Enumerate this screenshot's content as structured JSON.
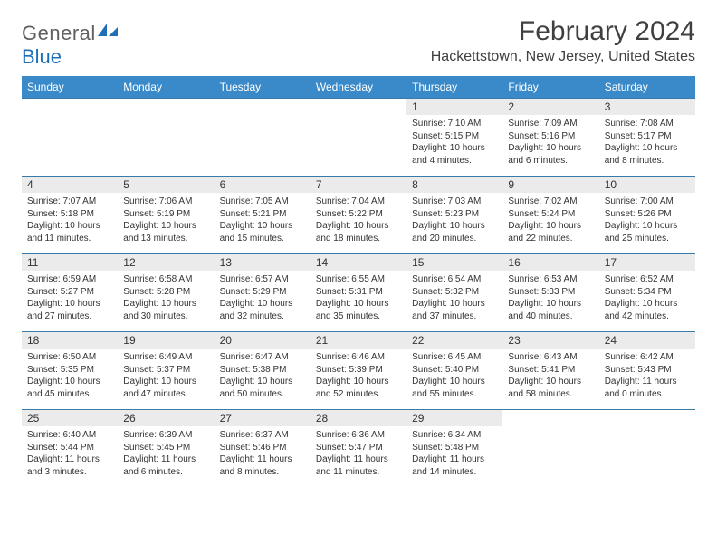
{
  "colors": {
    "header_bg": "#3a8ac9",
    "header_text": "#ffffff",
    "daynum_bg": "#ebebeb",
    "text": "#333333",
    "row_border": "#3a7aa8",
    "logo_gray": "#606060",
    "logo_blue": "#1e6fb8"
  },
  "logo": {
    "part1": "General",
    "part2": "Blue"
  },
  "title": "February 2024",
  "subtitle": "Hackettstown, New Jersey, United States",
  "weekdays": [
    "Sunday",
    "Monday",
    "Tuesday",
    "Wednesday",
    "Thursday",
    "Friday",
    "Saturday"
  ],
  "weeks": [
    [
      null,
      null,
      null,
      null,
      {
        "n": "1",
        "sunrise": "7:10 AM",
        "sunset": "5:15 PM",
        "daylight": "10 hours and 4 minutes."
      },
      {
        "n": "2",
        "sunrise": "7:09 AM",
        "sunset": "5:16 PM",
        "daylight": "10 hours and 6 minutes."
      },
      {
        "n": "3",
        "sunrise": "7:08 AM",
        "sunset": "5:17 PM",
        "daylight": "10 hours and 8 minutes."
      }
    ],
    [
      {
        "n": "4",
        "sunrise": "7:07 AM",
        "sunset": "5:18 PM",
        "daylight": "10 hours and 11 minutes."
      },
      {
        "n": "5",
        "sunrise": "7:06 AM",
        "sunset": "5:19 PM",
        "daylight": "10 hours and 13 minutes."
      },
      {
        "n": "6",
        "sunrise": "7:05 AM",
        "sunset": "5:21 PM",
        "daylight": "10 hours and 15 minutes."
      },
      {
        "n": "7",
        "sunrise": "7:04 AM",
        "sunset": "5:22 PM",
        "daylight": "10 hours and 18 minutes."
      },
      {
        "n": "8",
        "sunrise": "7:03 AM",
        "sunset": "5:23 PM",
        "daylight": "10 hours and 20 minutes."
      },
      {
        "n": "9",
        "sunrise": "7:02 AM",
        "sunset": "5:24 PM",
        "daylight": "10 hours and 22 minutes."
      },
      {
        "n": "10",
        "sunrise": "7:00 AM",
        "sunset": "5:26 PM",
        "daylight": "10 hours and 25 minutes."
      }
    ],
    [
      {
        "n": "11",
        "sunrise": "6:59 AM",
        "sunset": "5:27 PM",
        "daylight": "10 hours and 27 minutes."
      },
      {
        "n": "12",
        "sunrise": "6:58 AM",
        "sunset": "5:28 PM",
        "daylight": "10 hours and 30 minutes."
      },
      {
        "n": "13",
        "sunrise": "6:57 AM",
        "sunset": "5:29 PM",
        "daylight": "10 hours and 32 minutes."
      },
      {
        "n": "14",
        "sunrise": "6:55 AM",
        "sunset": "5:31 PM",
        "daylight": "10 hours and 35 minutes."
      },
      {
        "n": "15",
        "sunrise": "6:54 AM",
        "sunset": "5:32 PM",
        "daylight": "10 hours and 37 minutes."
      },
      {
        "n": "16",
        "sunrise": "6:53 AM",
        "sunset": "5:33 PM",
        "daylight": "10 hours and 40 minutes."
      },
      {
        "n": "17",
        "sunrise": "6:52 AM",
        "sunset": "5:34 PM",
        "daylight": "10 hours and 42 minutes."
      }
    ],
    [
      {
        "n": "18",
        "sunrise": "6:50 AM",
        "sunset": "5:35 PM",
        "daylight": "10 hours and 45 minutes."
      },
      {
        "n": "19",
        "sunrise": "6:49 AM",
        "sunset": "5:37 PM",
        "daylight": "10 hours and 47 minutes."
      },
      {
        "n": "20",
        "sunrise": "6:47 AM",
        "sunset": "5:38 PM",
        "daylight": "10 hours and 50 minutes."
      },
      {
        "n": "21",
        "sunrise": "6:46 AM",
        "sunset": "5:39 PM",
        "daylight": "10 hours and 52 minutes."
      },
      {
        "n": "22",
        "sunrise": "6:45 AM",
        "sunset": "5:40 PM",
        "daylight": "10 hours and 55 minutes."
      },
      {
        "n": "23",
        "sunrise": "6:43 AM",
        "sunset": "5:41 PM",
        "daylight": "10 hours and 58 minutes."
      },
      {
        "n": "24",
        "sunrise": "6:42 AM",
        "sunset": "5:43 PM",
        "daylight": "11 hours and 0 minutes."
      }
    ],
    [
      {
        "n": "25",
        "sunrise": "6:40 AM",
        "sunset": "5:44 PM",
        "daylight": "11 hours and 3 minutes."
      },
      {
        "n": "26",
        "sunrise": "6:39 AM",
        "sunset": "5:45 PM",
        "daylight": "11 hours and 6 minutes."
      },
      {
        "n": "27",
        "sunrise": "6:37 AM",
        "sunset": "5:46 PM",
        "daylight": "11 hours and 8 minutes."
      },
      {
        "n": "28",
        "sunrise": "6:36 AM",
        "sunset": "5:47 PM",
        "daylight": "11 hours and 11 minutes."
      },
      {
        "n": "29",
        "sunrise": "6:34 AM",
        "sunset": "5:48 PM",
        "daylight": "11 hours and 14 minutes."
      },
      null,
      null
    ]
  ],
  "labels": {
    "sunrise": "Sunrise:",
    "sunset": "Sunset:",
    "daylight": "Daylight:"
  }
}
